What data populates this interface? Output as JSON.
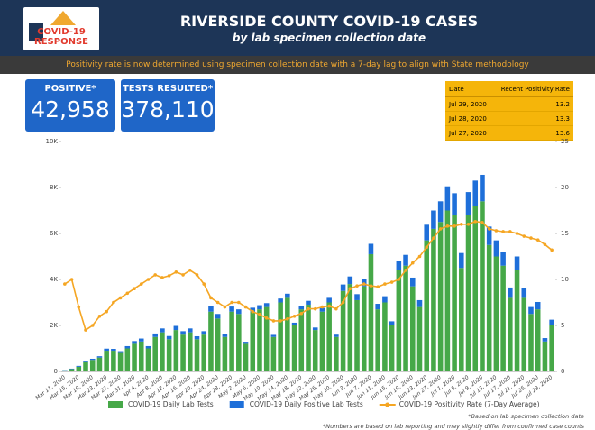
{
  "header": {
    "logo": "COVID-19 RESPONSE",
    "title": "RIVERSIDE COUNTY COVID-19 CASES",
    "subtitle": "by lab specimen collection date",
    "banner": "Positivity rate is now determined using specimen collection date with a 7-day lag to align with State methodology"
  },
  "kpis": [
    {
      "label": "POSITIVE*",
      "value": "42,958"
    },
    {
      "label": "TESTS RESULTED*",
      "value": "378,110"
    }
  ],
  "table": {
    "columns": [
      "Date",
      "Recent Positivity Rate"
    ],
    "rows": [
      [
        "Jul 29, 2020",
        "13.2"
      ],
      [
        "Jul 28, 2020",
        "13.3"
      ],
      [
        "Jul 27, 2020",
        "13.6"
      ]
    ]
  },
  "chart_data": {
    "type": "bar",
    "stacked": true,
    "categories": [
      "Mar 11, 2020",
      null,
      "Mar 15, 2020",
      null,
      "Mar 19, 2020",
      null,
      "Mar 23, 2020",
      null,
      "Mar 27, 2020",
      null,
      "Mar 31, 2020",
      null,
      "Apr 4, 2020",
      null,
      "Apr 8, 2020",
      null,
      "Apr 12, 2020",
      null,
      "Apr 16, 2020",
      null,
      "Apr 20, 2020",
      null,
      "Apr 24, 2020",
      null,
      "Apr 28, 2020",
      null,
      "May 2, 2020",
      null,
      "May 6, 2020",
      null,
      "May 10, 2020",
      null,
      "May 14, 2020",
      null,
      "May 18, 2020",
      null,
      "May 22, 2020",
      null,
      "May 26, 2020",
      null,
      "May 30, 2020",
      null,
      "Jun 3, 2020",
      null,
      "Jun 7, 2020",
      null,
      "Jun 11, 2020",
      null,
      "Jun 15, 2020",
      null,
      "Jun 19, 2020",
      null,
      "Jun 23, 2020",
      null,
      "Jun 27, 2020",
      null,
      "Jul 1, 2020",
      null,
      "Jul 5, 2020",
      null,
      "Jul 9, 2020",
      null,
      "Jul 13, 2020",
      null,
      "Jul 17, 2020",
      null,
      "Jul 21, 2020",
      null,
      "Jul 25, 2020",
      null,
      "Jul 29, 2020"
    ],
    "series": [
      {
        "name": "COVID-19 Daily Lab Tests",
        "color": "#46a848",
        "values": [
          50,
          100,
          200,
          400,
          500,
          600,
          900,
          900,
          800,
          1000,
          1200,
          1300,
          1000,
          1500,
          1700,
          1400,
          1800,
          1600,
          1700,
          1400,
          1600,
          2600,
          2300,
          1500,
          2600,
          2500,
          1200,
          2600,
          2700,
          2800,
          1500,
          3000,
          3200,
          2000,
          2700,
          2900,
          1800,
          2600,
          3000,
          1500,
          3500,
          3800,
          3100,
          3700,
          5100,
          2700,
          3000,
          2000,
          4400,
          4600,
          3700,
          2800,
          5700,
          6200,
          6500,
          7000,
          6800,
          4500,
          6800,
          7200,
          7400,
          5500,
          5000,
          4600,
          3200,
          4400,
          3200,
          2500,
          2700,
          1300,
          2000
        ]
      },
      {
        "name": "COVID-19 Daily Positive Lab Tests",
        "color": "#1e6fd9",
        "values": [
          10,
          20,
          40,
          60,
          50,
          60,
          90,
          80,
          80,
          100,
          120,
          130,
          100,
          150,
          170,
          140,
          180,
          150,
          170,
          130,
          150,
          260,
          200,
          130,
          220,
          200,
          90,
          170,
          180,
          170,
          90,
          170,
          180,
          120,
          160,
          170,
          110,
          160,
          200,
          100,
          280,
          330,
          260,
          320,
          450,
          240,
          270,
          180,
          400,
          470,
          380,
          300,
          680,
          800,
          900,
          1050,
          950,
          650,
          1000,
          1100,
          1150,
          800,
          700,
          600,
          450,
          600,
          420,
          300,
          320,
          150,
          250
        ]
      },
      {
        "name": "COVID-19 Positivity Rate (7-Day Average)",
        "color": "#f5a623",
        "type": "line",
        "axis": "y2",
        "values": [
          9.5,
          10,
          7,
          4.5,
          5,
          6,
          6.5,
          7.5,
          8,
          8.5,
          9,
          9.5,
          10,
          10.5,
          10.2,
          10.4,
          10.8,
          10.5,
          11,
          10.5,
          9.5,
          8,
          7.5,
          7,
          7.5,
          7.5,
          7,
          6.5,
          6.2,
          5.8,
          5.5,
          5.5,
          5.7,
          6,
          6.3,
          6.8,
          6.8,
          7,
          7.1,
          6.8,
          7.5,
          9,
          9.3,
          9.5,
          9.3,
          9.2,
          9.5,
          9.7,
          10,
          11,
          11.8,
          12.5,
          13.5,
          14.5,
          15.5,
          15.8,
          15.8,
          16,
          16,
          16.3,
          16.2,
          15.5,
          15.3,
          15.2,
          15.2,
          15,
          14.7,
          14.5,
          14.3,
          13.8,
          13.2
        ]
      }
    ],
    "ylim": [
      0,
      10000
    ],
    "yticks": [
      0,
      {
        "value": 2000,
        "label": "2K"
      },
      {
        "value": 4000,
        "label": "4K"
      },
      {
        "value": 6000,
        "label": "6K"
      },
      {
        "value": 8000,
        "label": "8K"
      },
      {
        "value": 10000,
        "label": "10K"
      }
    ],
    "y2lim": [
      0,
      25
    ],
    "y2ticks": [
      0,
      5,
      10,
      15,
      20,
      25
    ],
    "grid": false,
    "legend": "bottom",
    "footnotes": [
      "*Based on lab specimen collection date",
      "*Numbers are based on lab reporting and may slightly differ from confirmed case counts"
    ]
  }
}
